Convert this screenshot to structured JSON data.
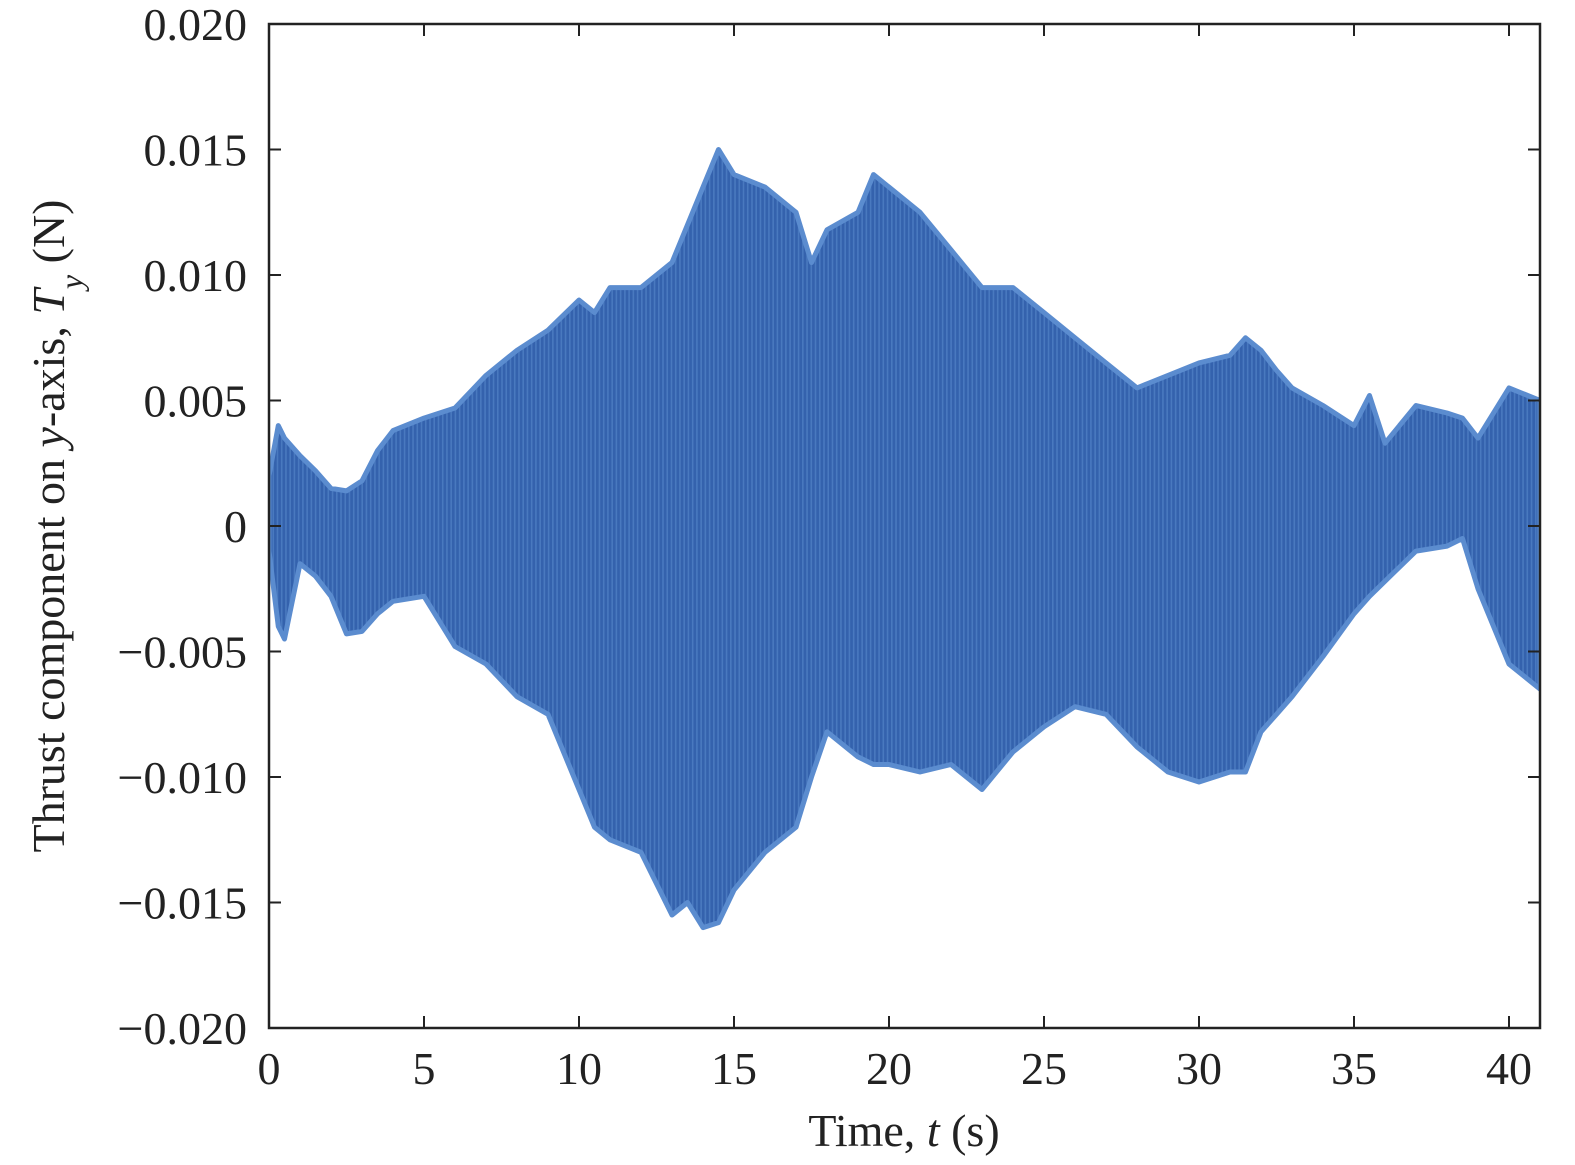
{
  "chart_data": {
    "type": "area",
    "title": "",
    "xlabel": {
      "prefix": "Time, ",
      "symbol": "t",
      "suffix": " (s)"
    },
    "ylabel": {
      "prefix": "Thrust component on ",
      "axis_symbol": "y",
      "mid": "-axis, ",
      "symbol": "T",
      "subscript": "y",
      "suffix": " (N)"
    },
    "xlim": [
      0,
      41
    ],
    "ylim": [
      -0.02,
      0.02
    ],
    "x_ticks": [
      0,
      5,
      10,
      15,
      20,
      25,
      30,
      35,
      40
    ],
    "x_tick_labels": [
      "0",
      "5",
      "10",
      "15",
      "20",
      "25",
      "30",
      "35",
      "40"
    ],
    "y_ticks": [
      -0.02,
      -0.015,
      -0.01,
      -0.005,
      0,
      0.005,
      0.01,
      0.015,
      0.02
    ],
    "y_tick_labels": [
      "−0.020",
      "−0.015",
      "−0.010",
      "−0.005",
      "0",
      "0.005",
      "0.010",
      "0.015",
      "0.020"
    ],
    "grid": false,
    "series_color": "#3462ad",
    "edge_color": "#5b8ccf",
    "series": [
      {
        "name": "",
        "representation": "oscillation envelope",
        "x": [
          0,
          0.3,
          0.5,
          1,
          1.5,
          2,
          2.5,
          3,
          3.5,
          4,
          5,
          6,
          7,
          8,
          9,
          10,
          10.5,
          11,
          12,
          13,
          13.5,
          14,
          14.5,
          15,
          16,
          17,
          17.5,
          18,
          19,
          19.5,
          20,
          21,
          22,
          23,
          24,
          25,
          26,
          27,
          28,
          29,
          30,
          31,
          31.5,
          32,
          32.5,
          33,
          34,
          35,
          35.5,
          36,
          37,
          38,
          38.5,
          39,
          40,
          41
        ],
        "upper": [
          0.002,
          0.004,
          0.0035,
          0.0028,
          0.0022,
          0.0015,
          0.0014,
          0.0018,
          0.003,
          0.0038,
          0.0043,
          0.0047,
          0.006,
          0.007,
          0.0078,
          0.009,
          0.0085,
          0.0095,
          0.0095,
          0.0105,
          0.012,
          0.0135,
          0.015,
          0.014,
          0.0135,
          0.0125,
          0.0105,
          0.0118,
          0.0125,
          0.014,
          0.0135,
          0.0125,
          0.011,
          0.0095,
          0.0095,
          0.0085,
          0.0075,
          0.0065,
          0.0055,
          0.006,
          0.0065,
          0.0068,
          0.0075,
          0.007,
          0.0062,
          0.0055,
          0.0048,
          0.004,
          0.0052,
          0.0033,
          0.0048,
          0.0045,
          0.0043,
          0.0035,
          0.0055,
          0.005
        ],
        "lower": [
          -0.001,
          -0.004,
          -0.0045,
          -0.0015,
          -0.002,
          -0.0028,
          -0.0043,
          -0.0042,
          -0.0035,
          -0.003,
          -0.0028,
          -0.0048,
          -0.0055,
          -0.0068,
          -0.0075,
          -0.0105,
          -0.012,
          -0.0125,
          -0.013,
          -0.0155,
          -0.015,
          -0.016,
          -0.0158,
          -0.0145,
          -0.013,
          -0.012,
          -0.01,
          -0.0082,
          -0.0092,
          -0.0095,
          -0.0095,
          -0.0098,
          -0.0095,
          -0.0105,
          -0.009,
          -0.008,
          -0.0072,
          -0.0075,
          -0.0088,
          -0.0098,
          -0.0102,
          -0.0098,
          -0.0098,
          -0.0082,
          -0.0075,
          -0.0068,
          -0.0052,
          -0.0035,
          -0.0028,
          -0.0022,
          -0.001,
          -0.0008,
          -0.0005,
          -0.0025,
          -0.0055,
          -0.0065
        ]
      }
    ]
  }
}
